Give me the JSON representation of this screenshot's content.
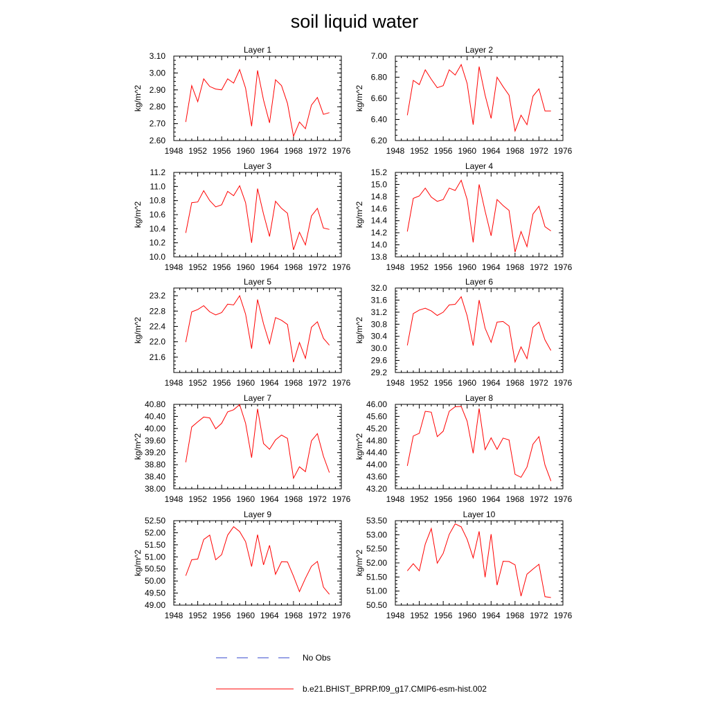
{
  "title": "soil liquid water",
  "legend": {
    "entries": [
      {
        "label": "No Obs",
        "color": "#3344cc",
        "style": "dashed"
      },
      {
        "label": "b.e21.BHIST_BPRP.f09_g17.CMIP6-esm-hist.002",
        "color": "#ff0000",
        "style": "solid"
      }
    ]
  },
  "chart_data": [
    {
      "type": "line",
      "title": "Layer 1",
      "ylabel": "kg/m^2",
      "xlim": [
        1948,
        1976
      ],
      "ylim": [
        2.6,
        3.1
      ],
      "xticks": [
        1948,
        1952,
        1956,
        1960,
        1964,
        1968,
        1972,
        1976
      ],
      "yticks": [
        "2.60",
        "2.70",
        "2.80",
        "2.90",
        "3.00",
        "3.10"
      ],
      "series": [
        {
          "color": "#ff0000",
          "x": [
            1950,
            1951,
            1952,
            1953,
            1954,
            1955,
            1956,
            1957,
            1958,
            1959,
            1960,
            1961,
            1962,
            1963,
            1964,
            1965,
            1966,
            1967,
            1968,
            1969,
            1970,
            1971,
            1972,
            1973,
            1974
          ],
          "y": [
            2.71,
            2.925,
            2.83,
            2.965,
            2.92,
            2.905,
            2.9,
            2.965,
            2.94,
            3.02,
            2.91,
            2.685,
            3.015,
            2.84,
            2.705,
            2.96,
            2.925,
            2.82,
            2.625,
            2.71,
            2.67,
            2.81,
            2.855,
            2.755,
            2.765
          ]
        }
      ]
    },
    {
      "type": "line",
      "title": "Layer 2",
      "ylabel": "kg/m^2",
      "xlim": [
        1948,
        1976
      ],
      "ylim": [
        6.2,
        7.0
      ],
      "xticks": [
        1948,
        1952,
        1956,
        1960,
        1964,
        1968,
        1972,
        1976
      ],
      "yticks": [
        "6.20",
        "6.40",
        "6.60",
        "6.80",
        "7.00"
      ],
      "series": [
        {
          "color": "#ff0000",
          "x": [
            1950,
            1951,
            1952,
            1953,
            1954,
            1955,
            1956,
            1957,
            1958,
            1959,
            1960,
            1961,
            1962,
            1963,
            1964,
            1965,
            1966,
            1967,
            1968,
            1969,
            1970,
            1971,
            1972,
            1973,
            1974
          ],
          "y": [
            6.44,
            6.77,
            6.73,
            6.87,
            6.78,
            6.7,
            6.72,
            6.87,
            6.82,
            6.92,
            6.74,
            6.35,
            6.9,
            6.63,
            6.41,
            6.8,
            6.71,
            6.63,
            6.29,
            6.44,
            6.35,
            6.62,
            6.69,
            6.48,
            6.48
          ]
        }
      ]
    },
    {
      "type": "line",
      "title": "Layer 3",
      "ylabel": "kg/m^2",
      "xlim": [
        1948,
        1976
      ],
      "ylim": [
        10.0,
        11.2
      ],
      "xticks": [
        1948,
        1952,
        1956,
        1960,
        1964,
        1968,
        1972,
        1976
      ],
      "yticks": [
        "10.0",
        "10.2",
        "10.4",
        "10.6",
        "10.8",
        "11.0",
        "11.2"
      ],
      "series": [
        {
          "color": "#ff0000",
          "x": [
            1950,
            1951,
            1952,
            1953,
            1954,
            1955,
            1956,
            1957,
            1958,
            1959,
            1960,
            1961,
            1962,
            1963,
            1964,
            1965,
            1966,
            1967,
            1968,
            1969,
            1970,
            1971,
            1972,
            1973,
            1974
          ],
          "y": [
            10.34,
            10.77,
            10.78,
            10.94,
            10.8,
            10.71,
            10.74,
            10.93,
            10.87,
            11.01,
            10.77,
            10.2,
            10.97,
            10.61,
            10.29,
            10.79,
            10.69,
            10.62,
            10.1,
            10.35,
            10.17,
            10.58,
            10.69,
            10.41,
            10.39
          ]
        }
      ]
    },
    {
      "type": "line",
      "title": "Layer 4",
      "ylabel": "kg/m^2",
      "xlim": [
        1948,
        1976
      ],
      "ylim": [
        13.8,
        15.2
      ],
      "xticks": [
        1948,
        1952,
        1956,
        1960,
        1964,
        1968,
        1972,
        1976
      ],
      "yticks": [
        "13.8",
        "14.0",
        "14.2",
        "14.4",
        "14.6",
        "14.8",
        "15.0",
        "15.2"
      ],
      "series": [
        {
          "color": "#ff0000",
          "x": [
            1950,
            1951,
            1952,
            1953,
            1954,
            1955,
            1956,
            1957,
            1958,
            1959,
            1960,
            1961,
            1962,
            1963,
            1964,
            1965,
            1966,
            1967,
            1968,
            1969,
            1970,
            1971,
            1972,
            1973,
            1974
          ],
          "y": [
            14.22,
            14.77,
            14.81,
            14.94,
            14.79,
            14.72,
            14.75,
            14.94,
            14.9,
            15.07,
            14.75,
            14.04,
            15.0,
            14.56,
            14.15,
            14.75,
            14.65,
            14.57,
            13.88,
            14.22,
            13.97,
            14.51,
            14.64,
            14.3,
            14.23
          ]
        }
      ]
    },
    {
      "type": "line",
      "title": "Layer 5",
      "ylabel": "kg/m^2",
      "xlim": [
        1948,
        1976
      ],
      "ylim": [
        21.2,
        23.4
      ],
      "xticks": [
        1948,
        1952,
        1956,
        1960,
        1964,
        1968,
        1972,
        1976
      ],
      "yticks": [
        "21.6",
        "22.0",
        "22.4",
        "22.8",
        "23.2"
      ],
      "series": [
        {
          "color": "#ff0000",
          "x": [
            1950,
            1951,
            1952,
            1953,
            1954,
            1955,
            1956,
            1957,
            1958,
            1959,
            1960,
            1961,
            1962,
            1963,
            1964,
            1965,
            1966,
            1967,
            1968,
            1969,
            1970,
            1971,
            1972,
            1973,
            1974
          ],
          "y": [
            21.99,
            22.78,
            22.84,
            22.94,
            22.78,
            22.7,
            22.76,
            22.98,
            22.96,
            23.2,
            22.72,
            21.82,
            23.1,
            22.47,
            21.95,
            22.63,
            22.56,
            22.45,
            21.47,
            21.98,
            21.57,
            22.38,
            22.52,
            22.09,
            21.91
          ]
        }
      ]
    },
    {
      "type": "line",
      "title": "Layer 6",
      "ylabel": "kg/m^2",
      "xlim": [
        1948,
        1976
      ],
      "ylim": [
        29.2,
        32.0
      ],
      "xticks": [
        1948,
        1952,
        1956,
        1960,
        1964,
        1968,
        1972,
        1976
      ],
      "yticks": [
        "29.2",
        "29.6",
        "30.0",
        "30.4",
        "30.8",
        "31.2",
        "31.6",
        "32.0"
      ],
      "series": [
        {
          "color": "#ff0000",
          "x": [
            1950,
            1951,
            1952,
            1953,
            1954,
            1955,
            1956,
            1957,
            1958,
            1959,
            1960,
            1961,
            1962,
            1963,
            1964,
            1965,
            1966,
            1967,
            1968,
            1969,
            1970,
            1971,
            1972,
            1973,
            1974
          ],
          "y": [
            30.1,
            31.15,
            31.27,
            31.33,
            31.24,
            31.09,
            31.2,
            31.44,
            31.46,
            31.71,
            31.08,
            30.09,
            31.6,
            30.67,
            30.2,
            30.87,
            30.89,
            30.74,
            29.55,
            30.05,
            29.66,
            30.7,
            30.87,
            30.28,
            29.93
          ]
        }
      ]
    },
    {
      "type": "line",
      "title": "Layer 7",
      "ylabel": "kg/m^2",
      "xlim": [
        1948,
        1976
      ],
      "ylim": [
        38.0,
        40.8
      ],
      "xticks": [
        1948,
        1952,
        1956,
        1960,
        1964,
        1968,
        1972,
        1976
      ],
      "yticks": [
        "38.00",
        "38.40",
        "38.80",
        "39.20",
        "39.60",
        "40.00",
        "40.40",
        "40.80"
      ],
      "series": [
        {
          "color": "#ff0000",
          "x": [
            1950,
            1951,
            1952,
            1953,
            1954,
            1955,
            1956,
            1957,
            1958,
            1959,
            1960,
            1961,
            1962,
            1963,
            1964,
            1965,
            1966,
            1967,
            1968,
            1969,
            1970,
            1971,
            1972,
            1973,
            1974
          ],
          "y": [
            38.88,
            40.05,
            40.22,
            40.38,
            40.35,
            39.99,
            40.17,
            40.55,
            40.62,
            40.79,
            40.17,
            39.03,
            40.65,
            39.5,
            39.31,
            39.62,
            39.78,
            39.67,
            38.35,
            38.73,
            38.57,
            39.59,
            39.83,
            39.08,
            38.54
          ]
        }
      ]
    },
    {
      "type": "line",
      "title": "Layer 8",
      "ylabel": "kg/m^2",
      "xlim": [
        1948,
        1976
      ],
      "ylim": [
        43.2,
        46.0
      ],
      "xticks": [
        1948,
        1952,
        1956,
        1960,
        1964,
        1968,
        1972,
        1976
      ],
      "yticks": [
        "43.20",
        "43.60",
        "44.00",
        "44.40",
        "44.80",
        "45.20",
        "45.60",
        "46.00"
      ],
      "series": [
        {
          "color": "#ff0000",
          "x": [
            1950,
            1951,
            1952,
            1953,
            1954,
            1955,
            1956,
            1957,
            1958,
            1959,
            1960,
            1961,
            1962,
            1963,
            1964,
            1965,
            1966,
            1967,
            1968,
            1969,
            1970,
            1971,
            1972,
            1973,
            1974
          ],
          "y": [
            43.96,
            44.95,
            45.04,
            45.77,
            45.74,
            44.93,
            45.11,
            45.77,
            45.92,
            45.93,
            45.44,
            44.38,
            45.86,
            44.5,
            44.89,
            44.51,
            44.88,
            44.82,
            43.68,
            43.58,
            43.92,
            44.68,
            44.93,
            43.99,
            43.46
          ]
        }
      ]
    },
    {
      "type": "line",
      "title": "Layer 9",
      "ylabel": "kg/m^2",
      "xlim": [
        1948,
        1976
      ],
      "ylim": [
        49.0,
        52.5
      ],
      "xticks": [
        1948,
        1952,
        1956,
        1960,
        1964,
        1968,
        1972,
        1976
      ],
      "yticks": [
        "49.00",
        "49.50",
        "50.00",
        "50.50",
        "51.00",
        "51.50",
        "52.00",
        "52.50"
      ],
      "series": [
        {
          "color": "#ff0000",
          "x": [
            1950,
            1951,
            1952,
            1953,
            1954,
            1955,
            1956,
            1957,
            1958,
            1959,
            1960,
            1961,
            1962,
            1963,
            1964,
            1965,
            1966,
            1967,
            1968,
            1969,
            1970,
            1971,
            1972,
            1973,
            1974
          ],
          "y": [
            50.22,
            50.88,
            50.91,
            51.72,
            51.9,
            50.88,
            51.09,
            51.9,
            52.25,
            52.05,
            51.63,
            50.6,
            51.92,
            50.67,
            51.48,
            50.28,
            50.8,
            50.79,
            50.2,
            49.56,
            50.11,
            50.61,
            50.81,
            49.75,
            49.45
          ]
        }
      ]
    },
    {
      "type": "line",
      "title": "Layer 10",
      "ylabel": "kg/m^2",
      "xlim": [
        1948,
        1976
      ],
      "ylim": [
        50.5,
        53.5
      ],
      "xticks": [
        1948,
        1952,
        1956,
        1960,
        1964,
        1968,
        1972,
        1976
      ],
      "yticks": [
        "50.50",
        "51.00",
        "51.50",
        "52.00",
        "52.50",
        "53.00",
        "53.50"
      ],
      "series": [
        {
          "color": "#ff0000",
          "x": [
            1950,
            1951,
            1952,
            1953,
            1954,
            1955,
            1956,
            1957,
            1958,
            1959,
            1960,
            1961,
            1962,
            1963,
            1964,
            1965,
            1966,
            1967,
            1968,
            1969,
            1970,
            1971,
            1972,
            1973,
            1974
          ],
          "y": [
            51.72,
            51.97,
            51.72,
            52.67,
            53.22,
            51.99,
            52.34,
            53.01,
            53.39,
            53.28,
            52.84,
            52.18,
            53.12,
            51.49,
            53.02,
            51.21,
            52.06,
            52.05,
            51.93,
            50.82,
            51.6,
            51.78,
            51.95,
            50.8,
            50.77
          ]
        }
      ]
    }
  ]
}
